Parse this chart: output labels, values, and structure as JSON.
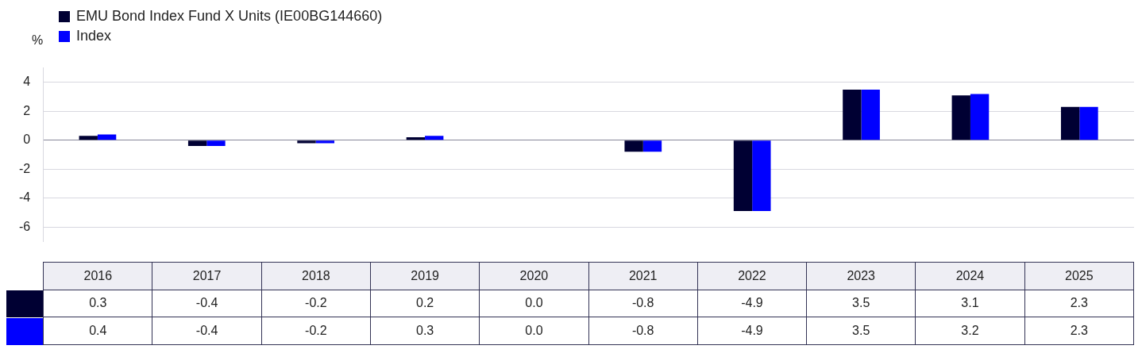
{
  "chart_data": {
    "type": "bar",
    "ylabel": "%",
    "categories": [
      "2016",
      "2017",
      "2018",
      "2019",
      "2020",
      "2021",
      "2022",
      "2023",
      "2024",
      "2025"
    ],
    "series": [
      {
        "name": "EMU Bond Index Fund X Units (IE00BG144660)",
        "color": "#000033",
        "values": [
          0.3,
          -0.4,
          -0.2,
          0.2,
          0.0,
          -0.8,
          -4.9,
          3.5,
          3.1,
          2.3
        ],
        "value_labels": [
          "0.3",
          "-0.4",
          "-0.2",
          "0.2",
          "0.0",
          "-0.8",
          "-4.9",
          "3.5",
          "3.1",
          "2.3"
        ]
      },
      {
        "name": "Index",
        "color": "#0000ff",
        "values": [
          0.4,
          -0.4,
          -0.2,
          0.3,
          0.0,
          -0.8,
          -4.9,
          3.5,
          3.2,
          2.3
        ],
        "value_labels": [
          "0.4",
          "-0.4",
          "-0.2",
          "0.3",
          "0.0",
          "-0.8",
          "-4.9",
          "3.5",
          "3.2",
          "2.3"
        ]
      }
    ],
    "ylim": [
      -7,
      5
    ],
    "yticks": [
      -6,
      -4,
      -2,
      0,
      2,
      4
    ],
    "grid": "y",
    "legend": "top left"
  }
}
